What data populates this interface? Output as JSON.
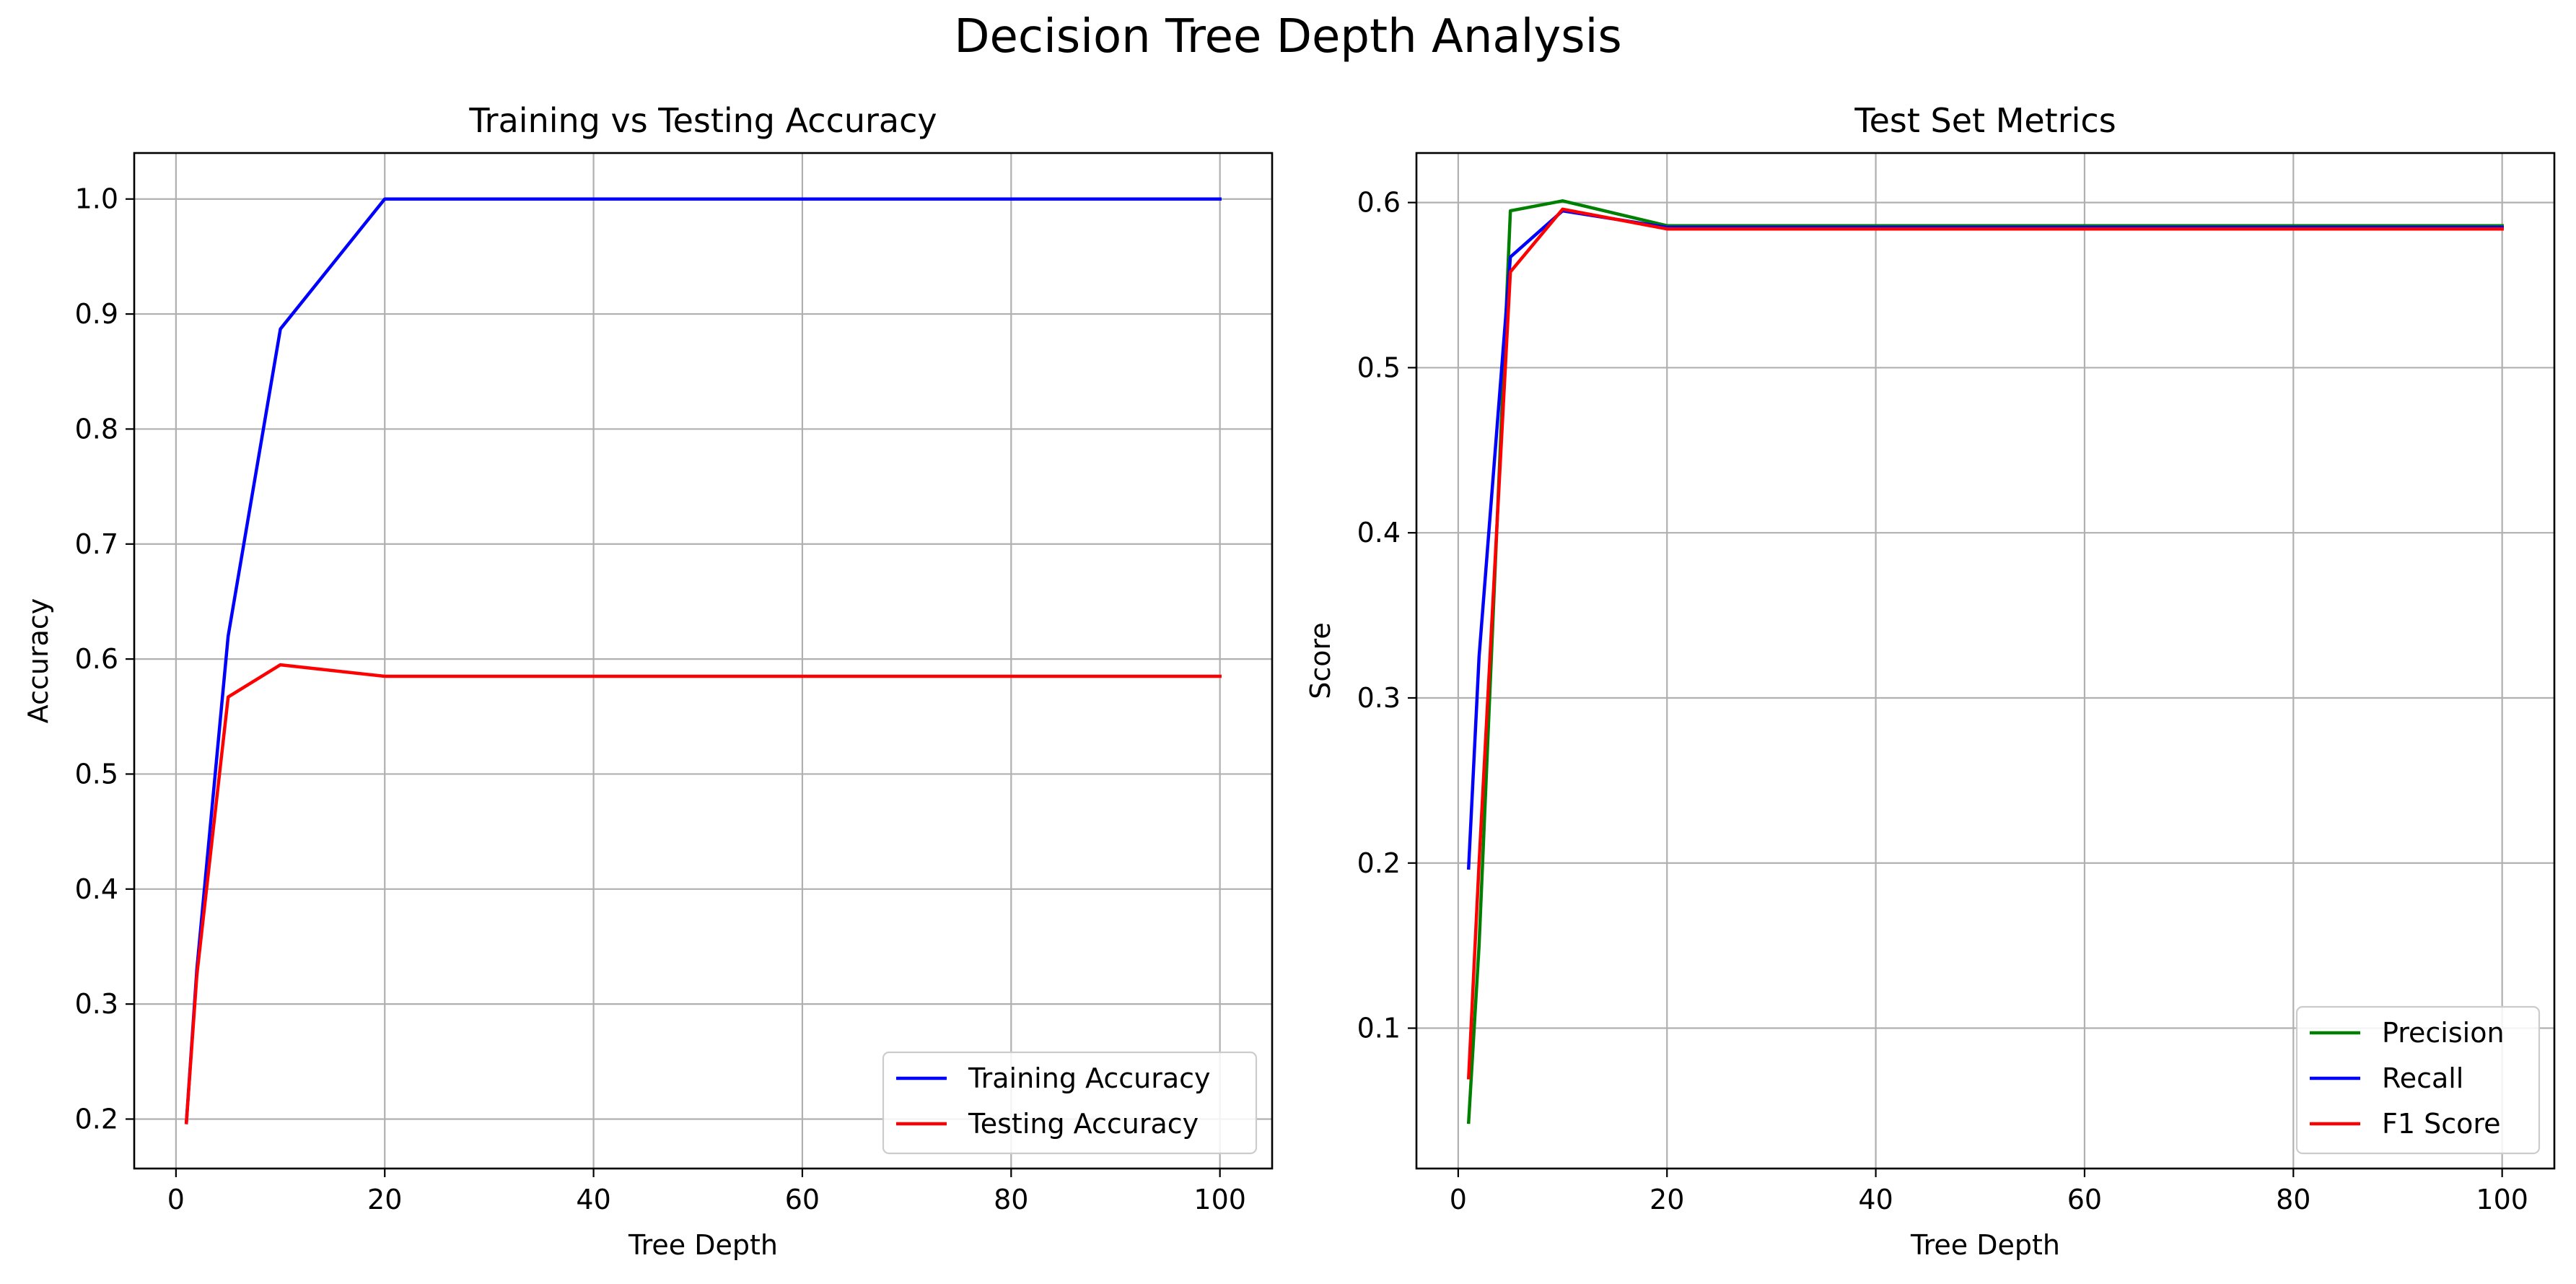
{
  "figure": {
    "title": "Decision Tree Depth Analysis"
  },
  "colors": {
    "blue": "#0000ff",
    "red": "#ff0000",
    "green": "#008000",
    "grid": "#b0b0b0"
  },
  "chart_data": [
    {
      "type": "line",
      "title": "Training vs Testing Accuracy",
      "xlabel": "Tree Depth",
      "ylabel": "Accuracy",
      "xlim": [
        -4,
        105
      ],
      "ylim": [
        0.157,
        1.04
      ],
      "xticks": [
        0,
        20,
        40,
        60,
        80,
        100
      ],
      "yticks": [
        0.2,
        0.3,
        0.4,
        0.5,
        0.6,
        0.7,
        0.8,
        0.9,
        1.0
      ],
      "xtick_labels": [
        "0",
        "20",
        "40",
        "60",
        "80",
        "100"
      ],
      "ytick_labels": [
        "0.2",
        "0.3",
        "0.4",
        "0.5",
        "0.6",
        "0.7",
        "0.8",
        "0.9",
        "1.0"
      ],
      "grid": true,
      "legend_position": "lower-right",
      "x": [
        1,
        2,
        5,
        10,
        20,
        50,
        100
      ],
      "series": [
        {
          "name": "Training Accuracy",
          "color": "#0000ff",
          "values": [
            0.197,
            0.33,
            0.62,
            0.887,
            1.0,
            1.0,
            1.0
          ]
        },
        {
          "name": "Testing Accuracy",
          "color": "#ff0000",
          "values": [
            0.197,
            0.325,
            0.567,
            0.595,
            0.585,
            0.585,
            0.585
          ]
        }
      ]
    },
    {
      "type": "line",
      "title": "Test Set Metrics",
      "xlabel": "Tree Depth",
      "ylabel": "Score",
      "xlim": [
        -4,
        105
      ],
      "ylim": [
        0.015,
        0.63
      ],
      "xticks": [
        0,
        20,
        40,
        60,
        80,
        100
      ],
      "yticks": [
        0.1,
        0.2,
        0.3,
        0.4,
        0.5,
        0.6
      ],
      "xtick_labels": [
        "0",
        "20",
        "40",
        "60",
        "80",
        "100"
      ],
      "ytick_labels": [
        "0.1",
        "0.2",
        "0.3",
        "0.4",
        "0.5",
        "0.6"
      ],
      "grid": true,
      "legend_position": "lower-right",
      "x": [
        1,
        2,
        5,
        10,
        20,
        50,
        100
      ],
      "series": [
        {
          "name": "Precision",
          "color": "#008000",
          "values": [
            0.043,
            0.15,
            0.595,
            0.601,
            0.586,
            0.586,
            0.586
          ]
        },
        {
          "name": "Recall",
          "color": "#0000ff",
          "values": [
            0.197,
            0.325,
            0.567,
            0.595,
            0.585,
            0.585,
            0.585
          ]
        },
        {
          "name": "F1 Score",
          "color": "#ff0000",
          "values": [
            0.07,
            0.2,
            0.558,
            0.596,
            0.584,
            0.584,
            0.584
          ]
        }
      ]
    }
  ]
}
